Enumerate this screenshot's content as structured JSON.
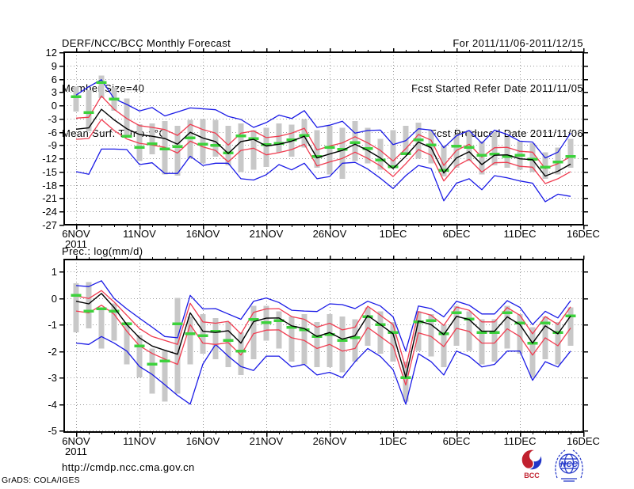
{
  "header": {
    "title": "DERF/NCC/BCC Monthly Forecast",
    "member_size": "Member Size=40",
    "valid_range": "For 2011/11/06-2011/12/15",
    "fcst_started": "Fcst Started Refer Date 2011/11/05",
    "fcst_produced": "Fcst Produced Date 2011/11/06"
  },
  "footer": {
    "url": "http://cmdp.ncc.cma.gov.cn",
    "credit": "GrADS: COLA/IGES",
    "logos": [
      {
        "label": "BCC"
      },
      {
        "label": "NCC"
      }
    ]
  },
  "colors": {
    "line_blue": "#1a1ae6",
    "line_red": "#f03c50",
    "line_black": "#000000",
    "obs_green": "#3cd23c",
    "bar_gray": "#c8c8c8",
    "grid_gray": "#999999",
    "frame_black": "#000000",
    "logo_red": "#c0202e",
    "logo_blue": "#2236c8"
  },
  "chart_data": [
    {
      "type": "line",
      "title": "Mean Surf. Temp.: °C",
      "x_tick_labels": [
        "6NOV",
        "11NOV",
        "16NOV",
        "21NOV",
        "26NOV",
        "1DEC",
        "6DEC",
        "11DEC",
        "16DEC"
      ],
      "x_tick_days": [
        0,
        5,
        10,
        15,
        20,
        25,
        30,
        35,
        40
      ],
      "year_label": "2011",
      "y_ticks": [
        12,
        9,
        6,
        3,
        0,
        -3,
        -6,
        -9,
        -12,
        -15,
        -18,
        -21,
        -24,
        -27
      ],
      "ylim": [
        -27,
        12
      ],
      "grid": true,
      "legend": false,
      "series": [
        {
          "name": "envelope_max_blue",
          "color": "line_blue",
          "values": [
            2.3,
            4.2,
            5.8,
            1.5,
            0.2,
            -1.3,
            -0.5,
            -2.4,
            -1.5,
            -0.6,
            -0.8,
            -1.0,
            -2.5,
            -3.2,
            -5.0,
            -3.9,
            -2.2,
            -3.0,
            -1.2,
            -5.0,
            -4.5,
            -3.6,
            -6.3,
            -5.7,
            -5.6,
            -8.9,
            -8.0,
            -5.3,
            -5.6,
            -9.6,
            -6.9,
            -5.7,
            -8.6,
            -5.6,
            -6.6,
            -8.1,
            -8.3,
            -11.9,
            -10.6,
            -6.3
          ]
        },
        {
          "name": "band_upper_red",
          "color": "line_red",
          "values": [
            -2.9,
            -2.7,
            2.1,
            -0.9,
            -3.0,
            -4.6,
            -5.0,
            -5.5,
            -6.8,
            -4.3,
            -5.5,
            -6.3,
            -9.0,
            -6.3,
            -5.8,
            -7.3,
            -7.0,
            -6.3,
            -5.2,
            -10.1,
            -9.2,
            -8.5,
            -7.1,
            -8.5,
            -10.2,
            -12.6,
            -9.8,
            -6.6,
            -7.9,
            -13.6,
            -10.2,
            -8.8,
            -11.7,
            -9.6,
            -9.5,
            -10.4,
            -10.6,
            -14.3,
            -13.2,
            -11.6
          ]
        },
        {
          "name": "ensemble_mean_black",
          "color": "line_black",
          "values": [
            -5.4,
            -5.1,
            -0.9,
            -3.3,
            -5.3,
            -6.6,
            -7.0,
            -7.5,
            -8.8,
            -6.1,
            -7.4,
            -8.2,
            -10.9,
            -8.2,
            -7.7,
            -9.2,
            -8.8,
            -8.1,
            -7.0,
            -11.9,
            -11.0,
            -10.2,
            -8.8,
            -10.2,
            -11.9,
            -14.3,
            -11.5,
            -8.3,
            -9.6,
            -15.3,
            -11.9,
            -10.5,
            -13.4,
            -11.3,
            -11.2,
            -12.1,
            -12.3,
            -16.0,
            -14.9,
            -13.3
          ]
        },
        {
          "name": "band_lower_red",
          "color": "line_red",
          "values": [
            -7.7,
            -7.5,
            -3.2,
            -5.7,
            -7.6,
            -8.6,
            -9.0,
            -9.5,
            -10.8,
            -8.1,
            -9.4,
            -10.2,
            -12.8,
            -10.2,
            -9.7,
            -11.2,
            -10.7,
            -10.0,
            -8.8,
            -13.7,
            -12.8,
            -12.0,
            -10.6,
            -12.0,
            -13.7,
            -16.1,
            -13.2,
            -10.0,
            -11.3,
            -17.1,
            -13.7,
            -12.2,
            -15.1,
            -13.0,
            -12.9,
            -13.8,
            -14.0,
            -17.7,
            -16.6,
            -15.0
          ]
        },
        {
          "name": "envelope_min_blue",
          "color": "line_blue",
          "values": [
            -15.0,
            -15.6,
            -9.9,
            -9.9,
            -10.0,
            -13.4,
            -13.0,
            -15.4,
            -15.4,
            -11.5,
            -13.6,
            -13.1,
            -13.1,
            -16.6,
            -16.9,
            -15.7,
            -13.4,
            -14.6,
            -13.1,
            -16.6,
            -16.1,
            -13.1,
            -12.9,
            -14.4,
            -16.5,
            -18.8,
            -15.9,
            -13.6,
            -14.3,
            -21.6,
            -17.6,
            -16.6,
            -19.1,
            -15.9,
            -16.4,
            -17.1,
            -17.6,
            -21.8,
            -20.1,
            -20.6
          ]
        }
      ],
      "obs_marks": {
        "name": "green_dash_marks",
        "color": "obs_green",
        "values": [
          1.9,
          -1.6,
          5.2,
          1.4,
          -7.0,
          -9.5,
          -8.7,
          -9.9,
          -9.3,
          -7.4,
          -8.8,
          -9.1,
          -10.8,
          -6.9,
          -7.5,
          -8.9,
          -8.6,
          -7.8,
          -6.8,
          -11.6,
          -9.5,
          -10.0,
          -8.4,
          -9.8,
          -12.4,
          -13.9,
          -10.9,
          -7.8,
          -9.0,
          -14.7,
          -9.2,
          -9.5,
          -11.3,
          -11.0,
          -11.6,
          -11.3,
          -12.2,
          -14.0,
          -12.8,
          -11.6
        ]
      },
      "spread_bars": [
        [
          4.2,
          -1.4
        ],
        [
          3.4,
          -5.9
        ],
        [
          6.7,
          1.6
        ],
        [
          4.0,
          -1.2
        ],
        [
          1.5,
          -7.2
        ],
        [
          -4.3,
          -12.6
        ],
        [
          -4.1,
          -11.1
        ],
        [
          -3.6,
          -15.6
        ],
        [
          -4.6,
          -15.9
        ],
        [
          -3.3,
          -12.1
        ],
        [
          -3.1,
          -13.1
        ],
        [
          -3.3,
          -11.6
        ],
        [
          -4.6,
          -13.6
        ],
        [
          -4.1,
          -15.1
        ],
        [
          -5.6,
          -14.6
        ],
        [
          -5.1,
          -13.9
        ],
        [
          -4.1,
          -10.6
        ],
        [
          -4.4,
          -11.6
        ],
        [
          -3.1,
          -9.6
        ],
        [
          -5.6,
          -14.1
        ],
        [
          -4.6,
          -15.6
        ],
        [
          -5.1,
          -16.6
        ],
        [
          -3.6,
          -12.6
        ],
        [
          -5.1,
          -13.1
        ],
        [
          -7.6,
          -14.6
        ],
        [
          -5.6,
          -13.6
        ],
        [
          -4.6,
          -11.1
        ],
        [
          -3.9,
          -12.1
        ],
        [
          -5.6,
          -13.1
        ],
        [
          -9.1,
          -16.1
        ],
        [
          -6.6,
          -14.1
        ],
        [
          -5.6,
          -12.6
        ],
        [
          -8.1,
          -15.6
        ],
        [
          -6.1,
          -13.6
        ],
        [
          -7.1,
          -14.1
        ],
        [
          -8.1,
          -14.6
        ],
        [
          -8.6,
          -15.1
        ],
        [
          -10.6,
          -16.6
        ],
        [
          -9.6,
          -15.6
        ],
        [
          -7.6,
          -14.1
        ]
      ]
    },
    {
      "type": "line",
      "title": "Prec.: log(mm/d)",
      "x_tick_labels": [
        "6NOV",
        "11NOV",
        "16NOV",
        "21NOV",
        "26NOV",
        "1DEC",
        "6DEC",
        "11DEC",
        "16DEC"
      ],
      "x_tick_days": [
        0,
        5,
        10,
        15,
        20,
        25,
        30,
        35,
        40
      ],
      "year_label": "2011",
      "y_ticks": [
        1,
        0,
        -1,
        -2,
        -3,
        -4,
        -5
      ],
      "ylim": [
        -5.05,
        1.45
      ],
      "grid": true,
      "legend": false,
      "series": [
        {
          "name": "envelope_max_blue",
          "color": "line_blue",
          "values": [
            0.47,
            0.43,
            0.65,
            -0.02,
            -0.41,
            -0.76,
            -1.1,
            -1.45,
            -1.5,
            0.1,
            -0.41,
            -0.4,
            -0.6,
            -0.8,
            -0.12,
            0.0,
            -0.17,
            -0.46,
            -0.49,
            -0.51,
            -0.22,
            -0.25,
            -0.4,
            -0.12,
            -0.3,
            -0.71,
            -2.0,
            -0.3,
            -0.4,
            -0.71,
            -0.12,
            -0.27,
            -0.6,
            -0.6,
            -0.1,
            -0.35,
            -1.0,
            -0.5,
            -0.75,
            -0.1
          ]
        },
        {
          "name": "band_upper_red",
          "color": "line_red",
          "values": [
            0.08,
            -0.02,
            0.28,
            -0.15,
            -0.65,
            -1.15,
            -1.45,
            -1.6,
            -1.75,
            -0.2,
            -0.9,
            -0.95,
            -0.88,
            -1.35,
            -0.54,
            -0.41,
            -0.4,
            -0.7,
            -0.8,
            -1.1,
            -0.95,
            -1.2,
            -1.1,
            -0.31,
            -0.65,
            -1.0,
            -2.63,
            -0.51,
            -0.65,
            -1.03,
            -0.34,
            -0.46,
            -0.9,
            -0.9,
            -0.36,
            -0.65,
            -1.35,
            -0.7,
            -1.0,
            -0.33
          ]
        },
        {
          "name": "ensemble_mean_black",
          "color": "line_black",
          "values": [
            -0.12,
            -0.22,
            0.17,
            -0.36,
            -1.0,
            -1.5,
            -1.81,
            -1.97,
            -2.12,
            -0.56,
            -1.25,
            -1.3,
            -1.23,
            -1.7,
            -0.89,
            -0.76,
            -0.75,
            -1.05,
            -1.15,
            -1.45,
            -1.3,
            -1.55,
            -1.42,
            -0.66,
            -1.0,
            -1.35,
            -2.98,
            -0.86,
            -1.0,
            -1.38,
            -0.69,
            -0.81,
            -1.25,
            -1.25,
            -0.71,
            -1.0,
            -1.7,
            -1.05,
            -1.35,
            -0.68
          ]
        },
        {
          "name": "band_lower_red",
          "color": "line_red",
          "values": [
            -0.49,
            -0.56,
            -0.27,
            -0.61,
            -1.25,
            -1.8,
            -2.09,
            -2.3,
            -2.5,
            -1.0,
            -1.7,
            -1.75,
            -1.68,
            -2.15,
            -1.34,
            -1.21,
            -1.2,
            -1.5,
            -1.6,
            -1.9,
            -1.75,
            -2.0,
            -1.9,
            -1.11,
            -1.45,
            -1.8,
            -3.28,
            -1.31,
            -1.45,
            -1.83,
            -1.14,
            -1.26,
            -1.7,
            -1.7,
            -1.16,
            -1.45,
            -2.15,
            -1.5,
            -1.8,
            -1.13
          ]
        },
        {
          "name": "envelope_min_blue",
          "color": "line_blue",
          "values": [
            -1.7,
            -1.75,
            -1.45,
            -1.7,
            -2.0,
            -2.58,
            -2.88,
            -3.27,
            -3.67,
            -4.0,
            -2.49,
            -1.75,
            -2.19,
            -2.58,
            -2.73,
            -2.19,
            -2.19,
            -2.6,
            -2.5,
            -2.9,
            -2.8,
            -3.0,
            -2.4,
            -1.9,
            -2.2,
            -2.7,
            -4.0,
            -2.1,
            -2.4,
            -2.9,
            -2.0,
            -2.2,
            -2.6,
            -2.5,
            -2.0,
            -2.0,
            -3.1,
            -2.4,
            -2.6,
            -2.0
          ]
        }
      ],
      "obs_marks": {
        "name": "green_dash_marks",
        "color": "obs_green",
        "values": [
          0.1,
          -0.49,
          -0.4,
          -0.5,
          -0.97,
          -1.81,
          -2.49,
          -2.37,
          -0.97,
          -1.35,
          -1.42,
          -1.25,
          -1.6,
          -2.0,
          -0.81,
          -0.93,
          -0.85,
          -1.1,
          -1.2,
          -1.45,
          -1.38,
          -1.6,
          -1.5,
          -0.7,
          -1.0,
          -1.3,
          -3.0,
          -0.9,
          -0.85,
          -1.35,
          -0.55,
          -0.8,
          -1.3,
          -1.3,
          -0.55,
          -0.95,
          -1.7,
          -0.95,
          -1.3,
          -0.68
        ]
      },
      "spread_bars": [
        [
          0.55,
          -1.3
        ],
        [
          0.6,
          -1.15
        ],
        [
          -0.4,
          -1.9
        ],
        [
          -0.2,
          -1.6
        ],
        [
          -0.9,
          -2.5
        ],
        [
          -1.4,
          -3.0
        ],
        [
          -1.9,
          -3.6
        ],
        [
          -2.0,
          -3.9
        ],
        [
          0.0,
          -3.6
        ],
        [
          -0.7,
          -2.5
        ],
        [
          -0.6,
          -2.1
        ],
        [
          -0.75,
          -2.3
        ],
        [
          -0.9,
          -2.6
        ],
        [
          -1.3,
          -2.9
        ],
        [
          -0.3,
          -2.3
        ],
        [
          -0.3,
          -1.6
        ],
        [
          -0.5,
          -1.9
        ],
        [
          -0.7,
          -2.4
        ],
        [
          -0.6,
          -2.5
        ],
        [
          -0.9,
          -2.6
        ],
        [
          -0.6,
          -2.6
        ],
        [
          -0.7,
          -2.8
        ],
        [
          -0.8,
          -2.4
        ],
        [
          -0.35,
          -1.8
        ],
        [
          -0.5,
          -2.1
        ],
        [
          -0.9,
          -2.4
        ],
        [
          -2.4,
          -3.9
        ],
        [
          -0.5,
          -2.0
        ],
        [
          -0.6,
          -2.2
        ],
        [
          -1.0,
          -2.6
        ],
        [
          -0.3,
          -1.8
        ],
        [
          -0.5,
          -2.0
        ],
        [
          -0.8,
          -2.5
        ],
        [
          -0.8,
          -2.4
        ],
        [
          -0.3,
          -1.9
        ],
        [
          -0.6,
          -2.1
        ],
        [
          -1.1,
          -3.0
        ],
        [
          -0.7,
          -2.3
        ],
        [
          -0.9,
          -2.5
        ],
        [
          -0.35,
          -1.8
        ]
      ]
    }
  ]
}
